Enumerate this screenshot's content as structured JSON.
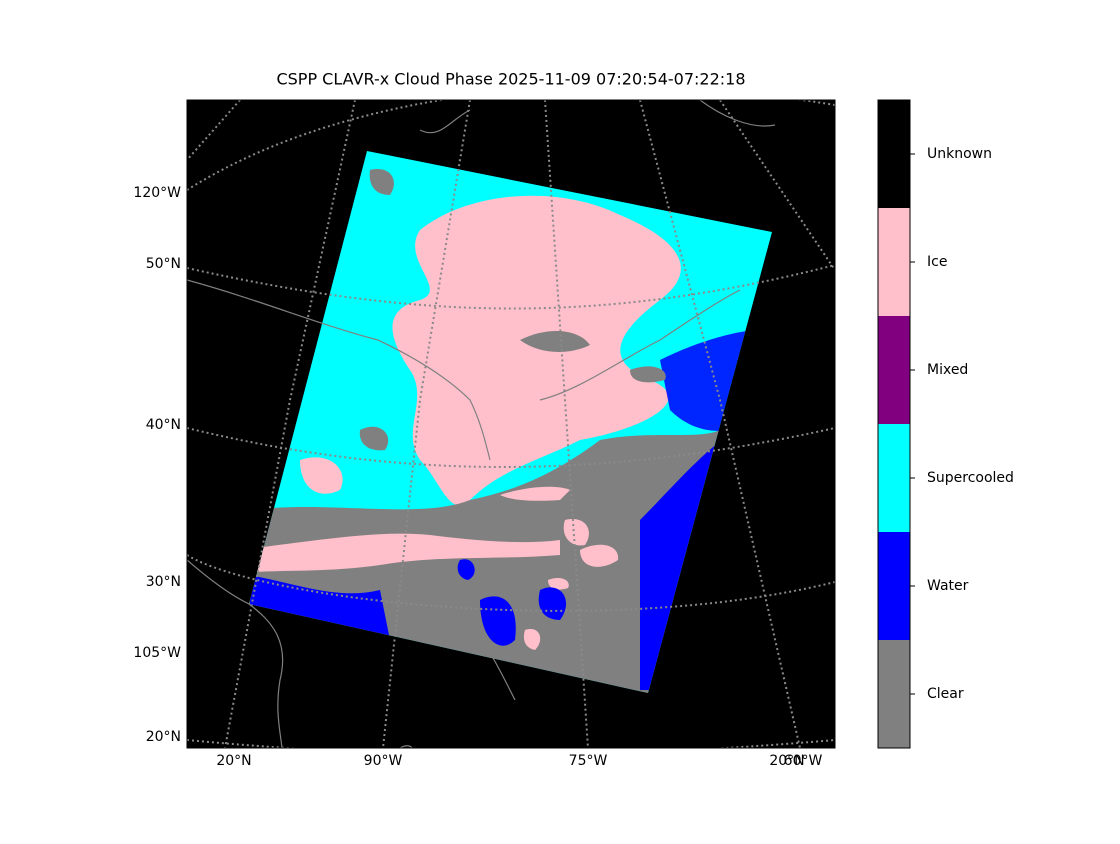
{
  "title": "CSPP CLAVR-x Cloud Phase 2025-11-09 07:20:54-07:22:18",
  "map": {
    "left_labels": [
      "120°W",
      "50°N",
      "40°N",
      "30°N",
      "105°W",
      "20°N"
    ],
    "bottom_labels": [
      "20°N",
      "90°W",
      "75°W",
      "20°N",
      "60°W"
    ]
  },
  "colorbar": {
    "categories": [
      {
        "label": "Clear",
        "color": "#808080"
      },
      {
        "label": "Water",
        "color": "#0000ff"
      },
      {
        "label": "Supercooled",
        "color": "#00ffff"
      },
      {
        "label": "Mixed",
        "color": "#800080"
      },
      {
        "label": "Ice",
        "color": "#ffc0cb"
      },
      {
        "label": "Unknown",
        "color": "#000000"
      }
    ]
  }
}
